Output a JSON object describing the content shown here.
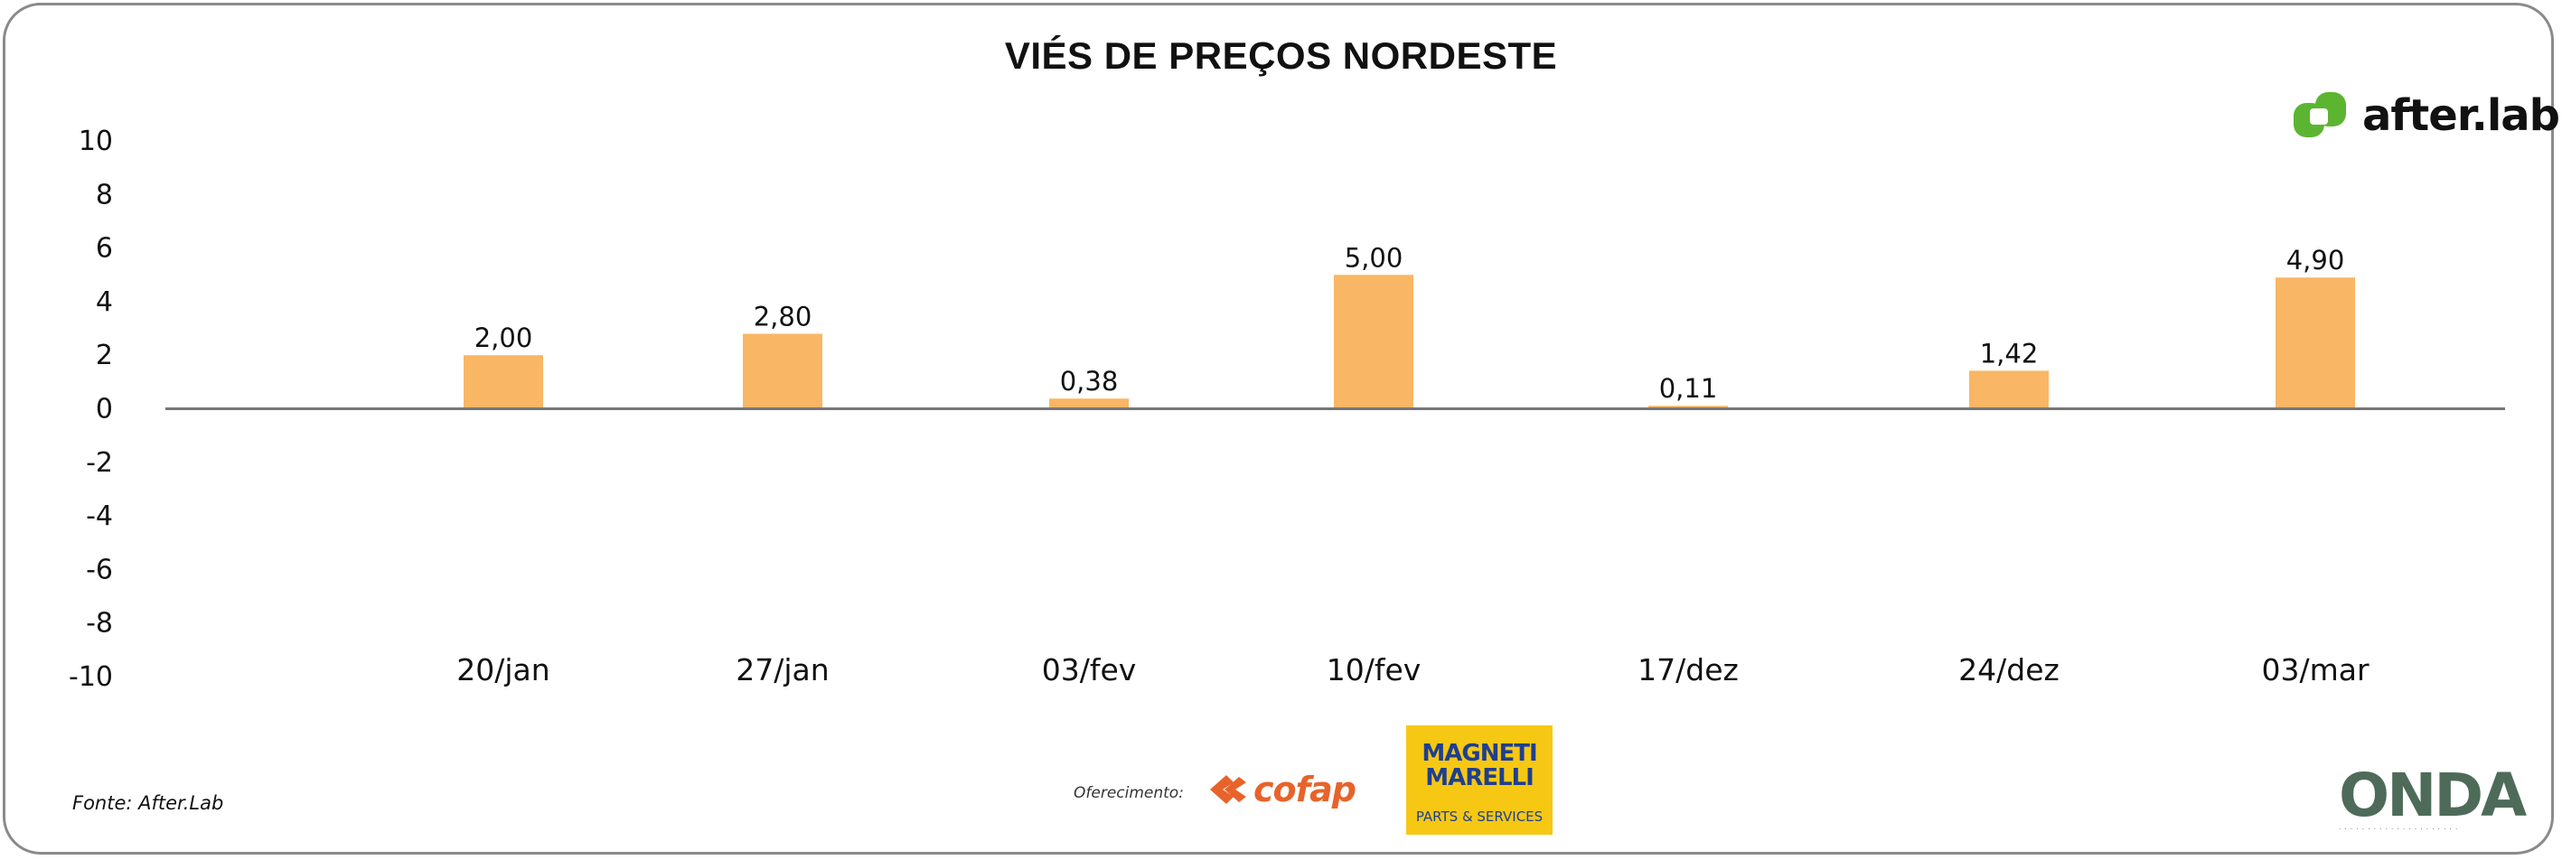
{
  "chart_data": {
    "type": "bar",
    "title": "VIÉS DE PREÇOS NORDESTE",
    "categories": [
      "20/jan",
      "27/jan",
      "03/fev",
      "10/fev",
      "17/dez",
      "24/dez",
      "03/mar"
    ],
    "values": [
      2.0,
      2.8,
      0.38,
      5.0,
      0.11,
      1.42,
      4.9
    ],
    "data_labels": [
      "2,00",
      "2,80",
      "0,38",
      "5,00",
      "0,11",
      "1,42",
      "4,90"
    ],
    "y_ticks": [
      "10",
      "8",
      "6",
      "4",
      "2",
      "0",
      "-2",
      "-4",
      "-6",
      "-8",
      "-10"
    ],
    "ylim": [
      -10,
      10
    ],
    "xlabel": "",
    "ylabel": "",
    "grid": false,
    "bar_color": "#f9b665",
    "axis_color": "#777777"
  },
  "footer": {
    "source": "Fonte: After.Lab",
    "offer_label": "Oferecimento:"
  },
  "logos": {
    "afterlab": "after.lab",
    "afterlab_color": "#5cb531",
    "cofap": "cofap",
    "marelli_brand": "MAGNETI MARELLI",
    "marelli_sub": "PARTS & SERVICES",
    "onda": "ONDA"
  }
}
